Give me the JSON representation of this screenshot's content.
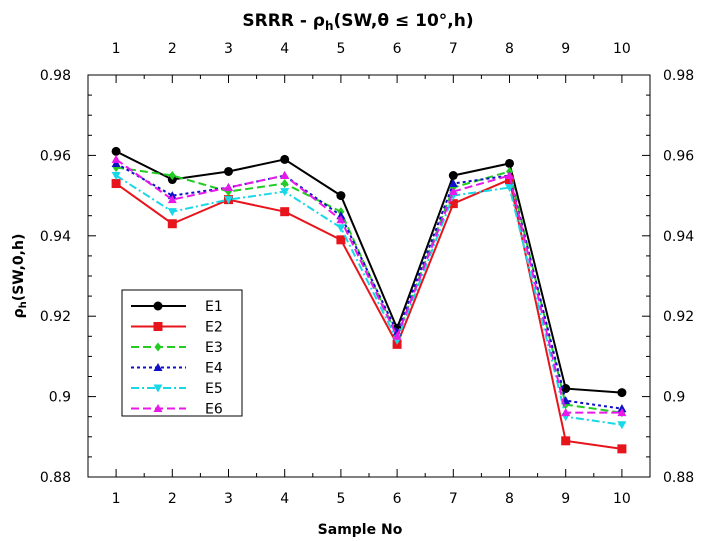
{
  "chart_data": {
    "type": "line",
    "title_main": "SRRR - ρ",
    "title_sub": "h",
    "title_rest": "(SW,θ ≤ 10°,h)",
    "xlabel": "Sample No",
    "ylabel_main": "ρ",
    "ylabel_sub": "h",
    "ylabel_rest": "(SW,0,h)",
    "x": [
      1,
      2,
      3,
      4,
      5,
      6,
      7,
      8,
      9,
      10
    ],
    "x_tick_labels": [
      "1",
      "2",
      "3",
      "4",
      "5",
      "6",
      "7",
      "8",
      "9",
      "10"
    ],
    "xlim": [
      0.5,
      10.5
    ],
    "ylim": [
      0.88,
      0.98
    ],
    "y_ticks": [
      0.88,
      0.9,
      0.92,
      0.94,
      0.96,
      0.98
    ],
    "y_tick_labels": [
      "0.88",
      "0.9",
      "0.92",
      "0.94",
      "0.96",
      "0.98"
    ],
    "grid": false,
    "legend_position": "left",
    "series": [
      {
        "name": "E1",
        "color": "#000000",
        "marker": "circle",
        "dash": "solid",
        "values": [
          0.961,
          0.954,
          0.956,
          0.959,
          0.95,
          0.917,
          0.955,
          0.958,
          0.902,
          0.901
        ]
      },
      {
        "name": "E2",
        "color": "#e8141c",
        "marker": "square",
        "dash": "solid",
        "values": [
          0.953,
          0.943,
          0.949,
          0.946,
          0.939,
          0.913,
          0.948,
          0.954,
          0.889,
          0.887
        ]
      },
      {
        "name": "E3",
        "color": "#22cc22",
        "marker": "diamond",
        "dash": "dash",
        "values": [
          0.957,
          0.955,
          0.951,
          0.953,
          0.946,
          0.915,
          0.952,
          0.956,
          0.898,
          0.896
        ]
      },
      {
        "name": "E4",
        "color": "#1010c8",
        "marker": "triangle-up",
        "dash": "dot",
        "values": [
          0.958,
          0.95,
          0.952,
          0.955,
          0.945,
          0.916,
          0.953,
          0.955,
          0.899,
          0.897
        ]
      },
      {
        "name": "E5",
        "color": "#18d8e8",
        "marker": "triangle-down",
        "dash": "dashdot",
        "values": [
          0.955,
          0.946,
          0.949,
          0.951,
          0.942,
          0.914,
          0.95,
          0.952,
          0.895,
          0.893
        ]
      },
      {
        "name": "E6",
        "color": "#e818e8",
        "marker": "triangle-up",
        "dash": "dash",
        "values": [
          0.959,
          0.949,
          0.952,
          0.955,
          0.944,
          0.915,
          0.951,
          0.955,
          0.896,
          0.896
        ]
      }
    ]
  }
}
